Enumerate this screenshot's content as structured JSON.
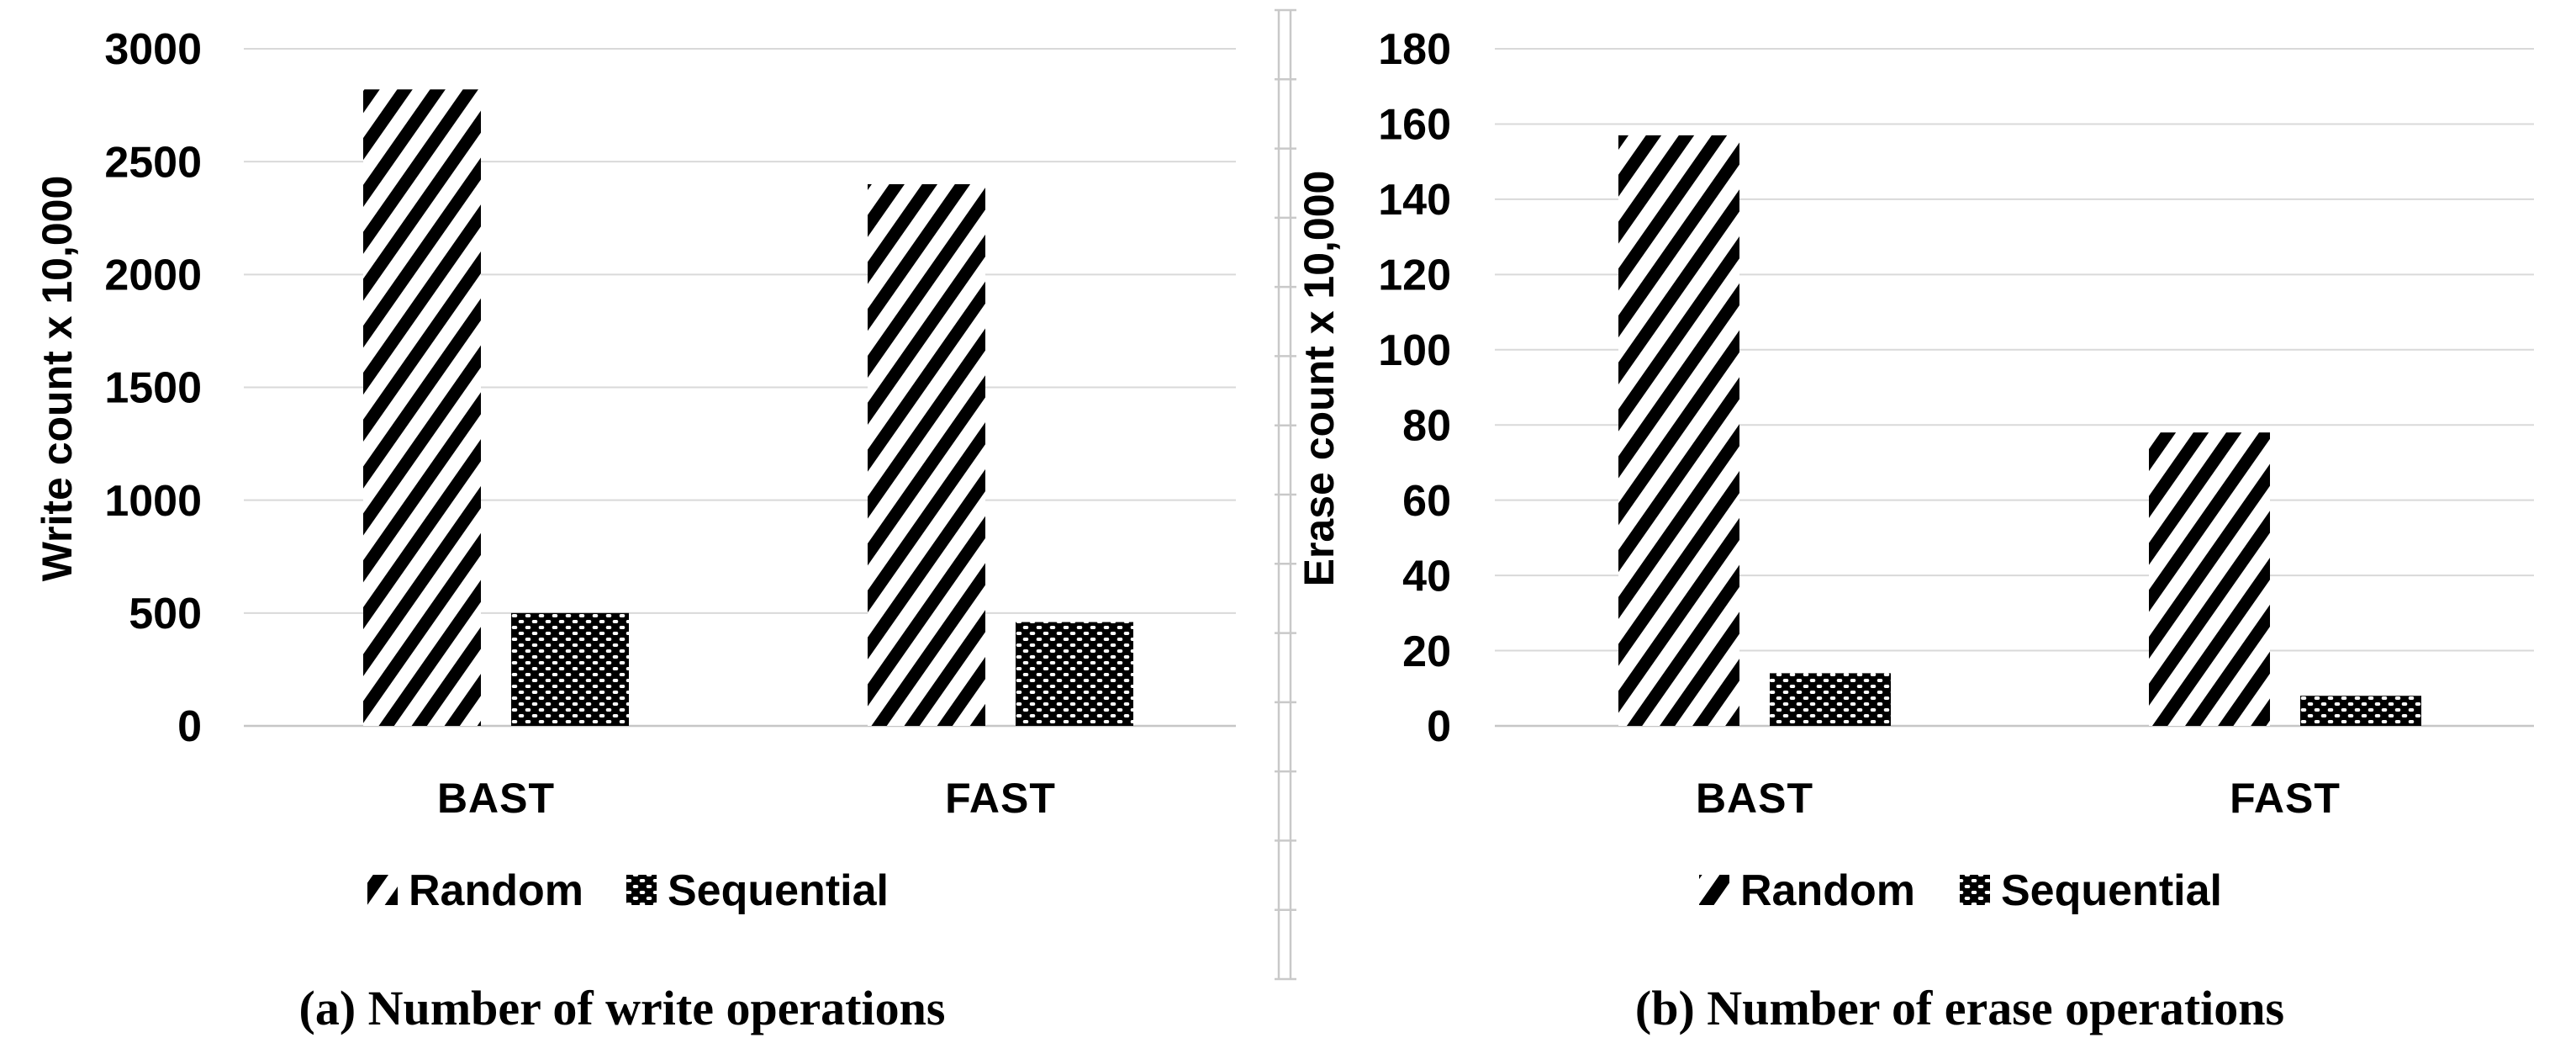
{
  "figure_type": "two-panel bar chart figure",
  "chart_data": [
    {
      "type": "bar",
      "caption": "(a) Number of write operations",
      "ylabel": "Write count x 10,000",
      "xlabel": "",
      "categories": [
        "BAST",
        "FAST"
      ],
      "series": [
        {
          "name": "Random",
          "pattern": "diagonal-hatch",
          "values": [
            2820,
            2400
          ]
        },
        {
          "name": "Sequential",
          "pattern": "checkerboard-dots",
          "values": [
            500,
            460
          ]
        }
      ],
      "ylim": [
        0,
        3000
      ],
      "ytick_step": 500,
      "yticks": [
        3000,
        2500,
        2000,
        1500,
        1000,
        500,
        0
      ],
      "grid": true,
      "legend_position": "bottom"
    },
    {
      "type": "bar",
      "caption": "(b) Number of erase operations",
      "ylabel": "Erase count x 10,000",
      "xlabel": "",
      "categories": [
        "BAST",
        "FAST"
      ],
      "series": [
        {
          "name": "Random",
          "pattern": "diagonal-hatch",
          "values": [
            157,
            78
          ]
        },
        {
          "name": "Sequential",
          "pattern": "checkerboard-dots",
          "values": [
            14,
            8
          ]
        }
      ],
      "ylim": [
        0,
        180
      ],
      "ytick_step": 20,
      "yticks": [
        180,
        160,
        140,
        120,
        100,
        80,
        60,
        40,
        20,
        0
      ],
      "grid": true,
      "legend_position": "bottom"
    }
  ],
  "colors": {
    "bar": "#000000",
    "gridline": "#d9d9d9",
    "axis_line": "#c6c6c6",
    "divider": "#c9c9c9",
    "text": "#000000",
    "background": "#ffffff"
  }
}
